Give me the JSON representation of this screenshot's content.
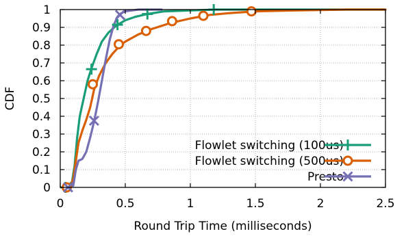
{
  "chart_data": {
    "type": "line",
    "xlabel": "Round Trip Time (milliseconds)",
    "ylabel": "CDF",
    "xlim": [
      0,
      2.5
    ],
    "ylim": [
      0,
      1
    ],
    "x_ticks": [
      "0",
      "0.5",
      "1",
      "1.5",
      "2",
      "2.5"
    ],
    "y_ticks": [
      "0",
      "0.1",
      "0.2",
      "0.3",
      "0.4",
      "0.5",
      "0.6",
      "0.7",
      "0.8",
      "0.9",
      "1"
    ],
    "grid": true,
    "legend_position": "bottom-right",
    "series": [
      {
        "name": "Flowlet switching (100us)",
        "color": "#1a9e77",
        "marker": "plus",
        "x": [
          0.03,
          0.06,
          0.09,
          0.11,
          0.13,
          0.15,
          0.18,
          0.21,
          0.24,
          0.28,
          0.32,
          0.37,
          0.43,
          0.5,
          0.58,
          0.67,
          0.8,
          1.0,
          1.2,
          1.5,
          2.5
        ],
        "y": [
          0,
          0.01,
          0.03,
          0.12,
          0.28,
          0.4,
          0.5,
          0.6,
          0.67,
          0.75,
          0.82,
          0.87,
          0.91,
          0.94,
          0.96,
          0.975,
          0.99,
          0.995,
          1.0,
          1.0,
          1.0
        ],
        "marker_x": [
          0.04,
          0.24,
          0.44,
          0.67,
          1.18
        ],
        "marker_y": [
          0.0,
          0.665,
          0.915,
          0.975,
          1.0
        ]
      },
      {
        "name": "Flowlet switching (500us)",
        "color": "#d95f02",
        "marker": "circle",
        "x": [
          0.04,
          0.08,
          0.1,
          0.12,
          0.14,
          0.17,
          0.2,
          0.23,
          0.26,
          0.3,
          0.35,
          0.4,
          0.45,
          0.5,
          0.6,
          0.7,
          0.85,
          1.0,
          1.15,
          1.3,
          1.5,
          1.8,
          2.2,
          2.5
        ],
        "y": [
          0,
          0.01,
          0.05,
          0.15,
          0.25,
          0.32,
          0.38,
          0.45,
          0.55,
          0.63,
          0.7,
          0.75,
          0.79,
          0.82,
          0.86,
          0.89,
          0.925,
          0.95,
          0.97,
          0.98,
          0.99,
          0.995,
          1.0,
          1.0
        ],
        "marker_x": [
          0.05,
          0.25,
          0.45,
          0.66,
          0.86,
          1.1,
          1.47
        ],
        "marker_y": [
          0.0,
          0.58,
          0.805,
          0.88,
          0.935,
          0.965,
          0.99
        ]
      },
      {
        "name": "Presto",
        "color": "#7570b3",
        "marker": "x",
        "x": [
          0.05,
          0.1,
          0.12,
          0.14,
          0.17,
          0.2,
          0.23,
          0.26,
          0.29,
          0.32,
          0.35,
          0.38,
          0.41,
          0.44,
          0.47,
          0.5,
          0.55,
          0.6,
          0.7,
          0.78
        ],
        "y": [
          0,
          0.01,
          0.1,
          0.15,
          0.16,
          0.2,
          0.28,
          0.37,
          0.48,
          0.6,
          0.72,
          0.83,
          0.91,
          0.96,
          0.98,
          0.99,
          0.995,
          1.0,
          1.0,
          1.0
        ],
        "marker_x": [
          0.06,
          0.26,
          0.46
        ],
        "marker_y": [
          0.0,
          0.375,
          0.97
        ]
      }
    ]
  }
}
